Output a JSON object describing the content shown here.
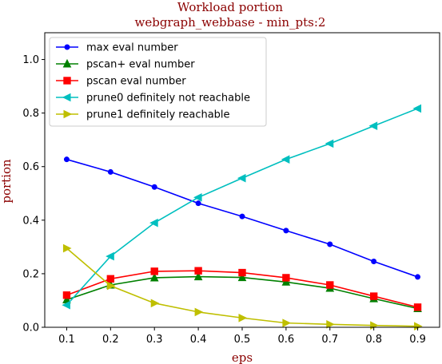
{
  "chart_data": {
    "type": "line",
    "title": "Workload portion",
    "subtitle": "webgraph_webbase - min_pts:2",
    "xlabel": "eps",
    "ylabel": "portion",
    "x": [
      0.1,
      0.2,
      0.3,
      0.4,
      0.5,
      0.6,
      0.7,
      0.8,
      0.9
    ],
    "xticks": [
      "0.1",
      "0.2",
      "0.3",
      "0.4",
      "0.5",
      "0.6",
      "0.7",
      "0.8",
      "0.9"
    ],
    "yticks": [
      "0.0",
      "0.2",
      "0.4",
      "0.6",
      "0.8",
      "1.0"
    ],
    "xlim": [
      0.05,
      0.95
    ],
    "ylim": [
      0.0,
      1.1
    ],
    "grid": false,
    "legend_position": "top-left",
    "series": [
      {
        "name": "max eval number",
        "color": "#0000ff",
        "marker": "circle",
        "values": [
          0.627,
          0.58,
          0.524,
          0.463,
          0.414,
          0.361,
          0.31,
          0.246,
          0.188
        ]
      },
      {
        "name": "pscan+ eval number",
        "color": "#008000",
        "marker": "triangle-up",
        "values": [
          0.103,
          0.158,
          0.185,
          0.189,
          0.186,
          0.169,
          0.146,
          0.107,
          0.07
        ]
      },
      {
        "name": "pscan eval number",
        "color": "#ff0000",
        "marker": "square",
        "values": [
          0.12,
          0.181,
          0.209,
          0.211,
          0.204,
          0.185,
          0.158,
          0.116,
          0.075
        ]
      },
      {
        "name": "prune0 definitely not reachable",
        "color": "#00bfbf",
        "marker": "triangle-left",
        "values": [
          0.083,
          0.265,
          0.39,
          0.485,
          0.557,
          0.627,
          0.686,
          0.752,
          0.817
        ]
      },
      {
        "name": "prune1 definitely reachable",
        "color": "#bfbf00",
        "marker": "triangle-right",
        "values": [
          0.295,
          0.155,
          0.09,
          0.057,
          0.035,
          0.016,
          0.011,
          0.007,
          0.004
        ]
      }
    ]
  }
}
